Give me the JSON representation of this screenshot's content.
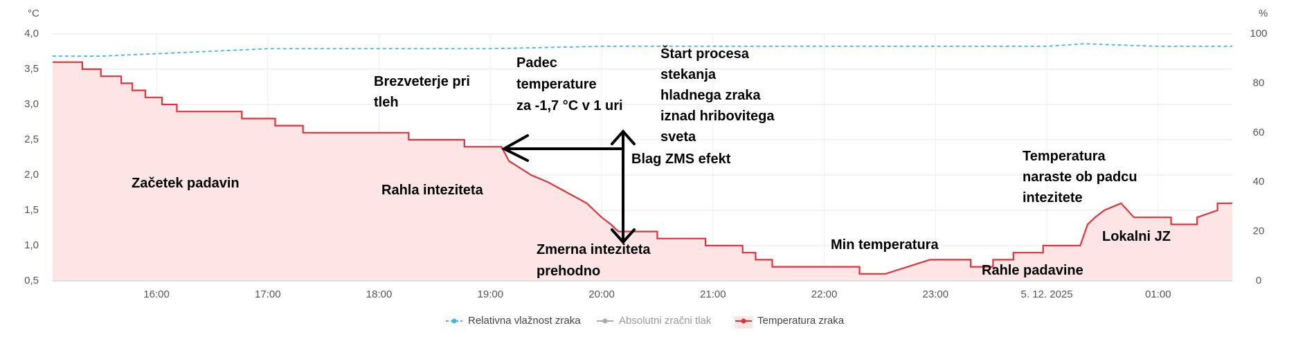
{
  "chart_data": {
    "type": "line",
    "y_label": "°C",
    "y2_label": "%",
    "xlim": [
      "15:04",
      "01:40"
    ],
    "xticks": [
      "16:00",
      "17:00",
      "18:00",
      "19:00",
      "20:00",
      "21:00",
      "22:00",
      "23:00",
      {
        "value": "00:00",
        "label": "5. 12. 2025"
      },
      "01:00"
    ],
    "ylim": [
      0.5,
      4.0
    ],
    "yticks": [
      {
        "value": 0.5,
        "label": "0,5"
      },
      {
        "value": 1.0,
        "label": "1,0"
      },
      {
        "value": 1.5,
        "label": "1,5"
      },
      {
        "value": 2.0,
        "label": "2,0"
      },
      {
        "value": 2.5,
        "label": "2,5"
      },
      {
        "value": 3.0,
        "label": "3,0"
      },
      {
        "value": 3.5,
        "label": "3,5"
      },
      {
        "value": 4.0,
        "label": "4,0"
      }
    ],
    "y2lim": [
      0,
      100
    ],
    "y2ticks": [
      0,
      20,
      40,
      60,
      80,
      100
    ],
    "grid": true,
    "series": [
      {
        "name": "Relativna vlažnost zraka",
        "color": "#3fb6e8",
        "axis": "y2",
        "dashed": true,
        "x": [
          "15:04",
          "15:30",
          "16:00",
          "16:30",
          "17:00",
          "18:00",
          "19:00",
          "20:00",
          "21:00",
          "22:00",
          "23:00",
          "00:00",
          "00:20",
          "01:00",
          "01:40"
        ],
        "values": [
          91,
          91,
          92,
          93,
          94,
          94,
          94,
          95,
          95,
          95,
          95,
          95,
          96,
          95,
          95
        ]
      },
      {
        "name": "Absolutni zračni tlak",
        "color": "#aaaaaa",
        "hidden": true,
        "x": [],
        "values": []
      },
      {
        "name": "Temperatura zraka",
        "color": "#e0323c",
        "fill": "#fde4e5",
        "x": [
          "15:04",
          "15:20",
          "15:20",
          "15:30",
          "15:30",
          "15:41",
          "15:41",
          "15:47",
          "15:47",
          "15:54",
          "15:54",
          "16:03",
          "16:03",
          "16:11",
          "16:11",
          "16:46",
          "16:46",
          "17:04",
          "17:04",
          "17:19",
          "17:19",
          "18:16",
          "18:16",
          "18:46",
          "18:46",
          "19:06",
          "19:10",
          "19:16",
          "19:22",
          "19:31",
          "19:38",
          "19:45",
          "19:52",
          "19:56",
          "20:00",
          "20:05",
          "20:09",
          "20:30",
          "20:30",
          "20:56",
          "20:56",
          "21:16",
          "21:16",
          "21:23",
          "21:23",
          "21:32",
          "21:32",
          "22:19",
          "22:19",
          "22:33",
          "22:57",
          "23:19",
          "23:19",
          "23:31",
          "23:31",
          "23:42",
          "23:42",
          "23:58",
          "23:58",
          "00:18",
          "00:22",
          "00:26",
          "00:31",
          "00:40",
          "00:47",
          "01:07",
          "01:07",
          "01:21",
          "01:21",
          "01:32",
          "01:32",
          "01:40"
        ],
        "values": [
          3.6,
          3.6,
          3.5,
          3.5,
          3.4,
          3.4,
          3.3,
          3.3,
          3.2,
          3.2,
          3.1,
          3.1,
          3.0,
          3.0,
          2.9,
          2.9,
          2.8,
          2.8,
          2.7,
          2.7,
          2.6,
          2.6,
          2.5,
          2.5,
          2.4,
          2.4,
          2.2,
          2.1,
          2.0,
          1.9,
          1.8,
          1.7,
          1.6,
          1.5,
          1.4,
          1.3,
          1.2,
          1.2,
          1.1,
          1.1,
          1.0,
          1.0,
          0.9,
          0.9,
          0.8,
          0.8,
          0.7,
          0.7,
          0.6,
          0.6,
          0.8,
          0.8,
          0.7,
          0.7,
          0.8,
          0.8,
          0.9,
          0.9,
          1.0,
          1.0,
          1.3,
          1.4,
          1.5,
          1.6,
          1.4,
          1.4,
          1.3,
          1.3,
          1.4,
          1.5,
          1.6,
          1.6
        ]
      }
    ],
    "annotations": [
      {
        "lines": [
          "Začetek padavin"
        ]
      },
      {
        "lines": [
          "Brezveterje pri",
          "tleh"
        ]
      },
      {
        "lines": [
          "Padec",
          "temperature",
          "za -1,7 °C v 1 uri"
        ]
      },
      {
        "lines": [
          "Štart procesa",
          "stekanja",
          "hladnega zraka",
          "iznad hribovitega",
          "sveta"
        ]
      },
      {
        "lines": [
          "Blag ZMS efekt"
        ]
      },
      {
        "lines": [
          "Rahla inteziteta"
        ]
      },
      {
        "lines": [
          "Zmerna inteziteta",
          "prehodno"
        ]
      },
      {
        "lines": [
          "Min temperatura"
        ]
      },
      {
        "lines": [
          "Rahle padavine"
        ]
      },
      {
        "lines": [
          "Temperatura",
          "naraste ob padcu",
          "intezitete"
        ]
      },
      {
        "lines": [
          "Lokalni JZ"
        ]
      }
    ]
  }
}
